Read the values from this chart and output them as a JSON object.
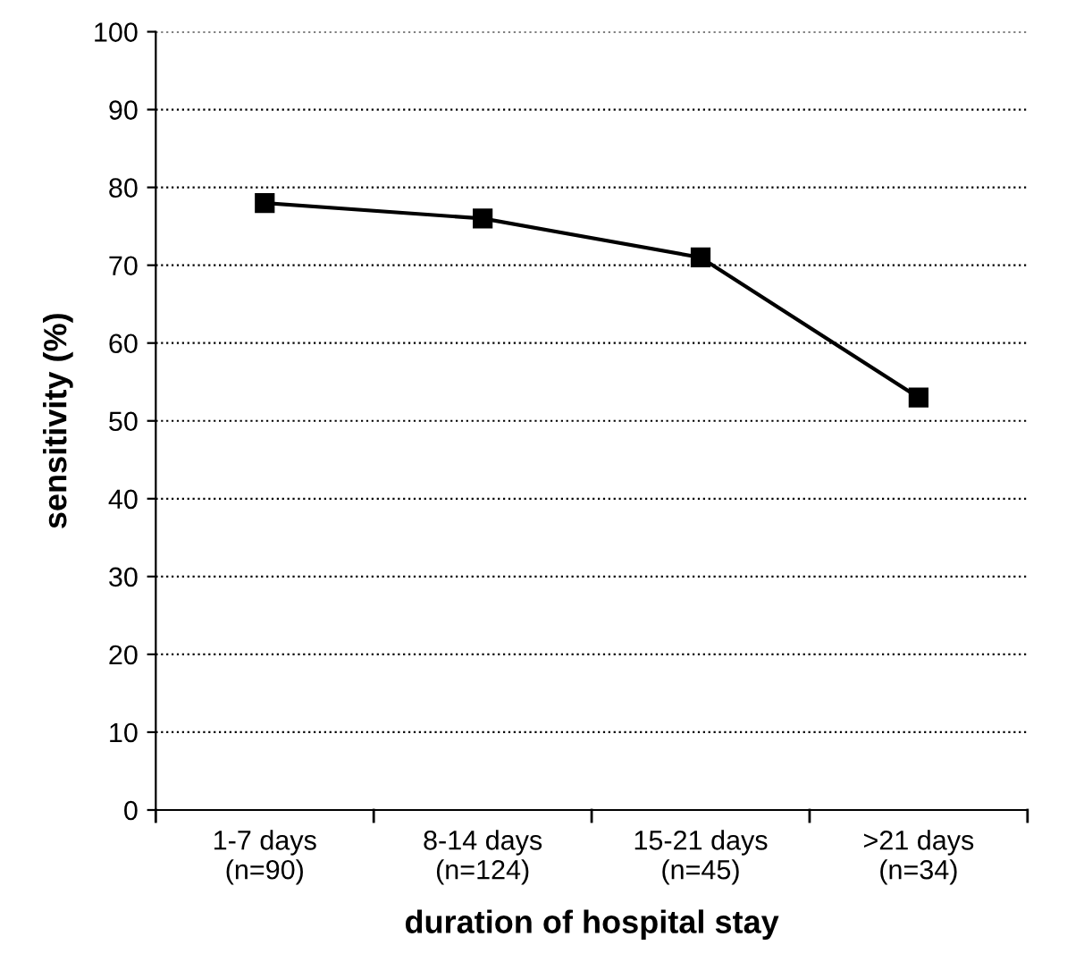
{
  "chart_data": {
    "type": "line",
    "xlabel": "duration of hospital stay",
    "ylabel": "sensitivity (%)",
    "categories": [
      "1-7 days\n(n=90)",
      "8-14 days\n(n=124)",
      "15-21 days\n(n=45)",
      ">21 days\n(n=34)"
    ],
    "series": [
      {
        "color": "#000000",
        "values": [
          78,
          76,
          71,
          53
        ]
      }
    ],
    "ylim": [
      0,
      100
    ],
    "yticks": [
      0,
      10,
      20,
      30,
      40,
      50,
      60,
      70,
      80,
      90,
      100
    ],
    "grid": "y",
    "marker": "square",
    "line_style": "solid"
  }
}
